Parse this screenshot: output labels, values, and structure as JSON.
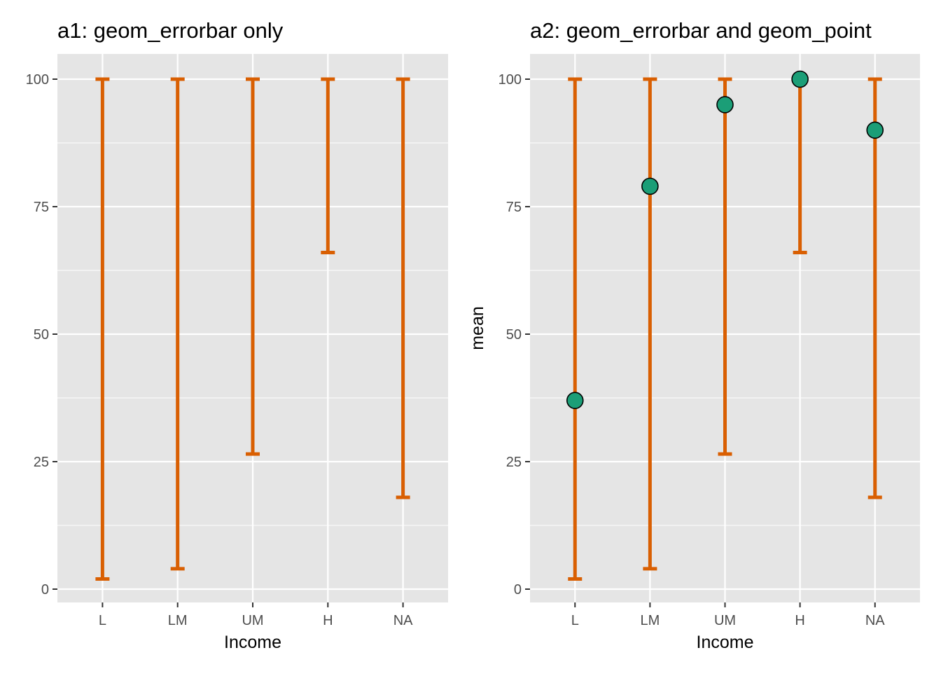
{
  "chart_data": [
    {
      "type": "errorbar",
      "title": "a1: geom_errorbar only",
      "xlabel": "",
      "ylabel": "",
      "categories": [
        "L",
        "LM",
        "UM",
        "H",
        "NA"
      ],
      "ylim": [
        0,
        100
      ],
      "yticks": [
        0,
        25,
        50,
        75,
        100
      ],
      "grid": true,
      "errorbars": [
        {
          "x": "L",
          "ymin": 2,
          "ymax": 100
        },
        {
          "x": "LM",
          "ymin": 4,
          "ymax": 100
        },
        {
          "x": "UM",
          "ymin": 26.5,
          "ymax": 100
        },
        {
          "x": "H",
          "ymin": 66,
          "ymax": 100
        },
        {
          "x": "NA",
          "ymin": 18,
          "ymax": 100
        }
      ],
      "errorbar_color": "#D95F02",
      "xaxis_title": "Income"
    },
    {
      "type": "errorbar+scatter",
      "title": "a2: geom_errorbar and geom_point",
      "xlabel": "Income",
      "ylabel": "mean",
      "categories": [
        "L",
        "LM",
        "UM",
        "H",
        "NA"
      ],
      "ylim": [
        0,
        100
      ],
      "yticks": [
        0,
        25,
        50,
        75,
        100
      ],
      "grid": true,
      "errorbars": [
        {
          "x": "L",
          "ymin": 2,
          "ymax": 100
        },
        {
          "x": "LM",
          "ymin": 4,
          "ymax": 100
        },
        {
          "x": "UM",
          "ymin": 26.5,
          "ymax": 100
        },
        {
          "x": "H",
          "ymin": 66,
          "ymax": 100
        },
        {
          "x": "NA",
          "ymin": 18,
          "ymax": 100
        }
      ],
      "points": [
        {
          "x": "L",
          "y": 37
        },
        {
          "x": "LM",
          "y": 79
        },
        {
          "x": "UM",
          "y": 95
        },
        {
          "x": "H",
          "y": 100
        },
        {
          "x": "NA",
          "y": 90
        }
      ],
      "errorbar_color": "#D95F02",
      "point_fill": "#1B9E77",
      "xaxis_title": "Income"
    }
  ],
  "colors": {
    "panel_background": "#E5E5E5",
    "grid_line": "#FFFFFF",
    "tick_text": "#4D4D4D"
  }
}
